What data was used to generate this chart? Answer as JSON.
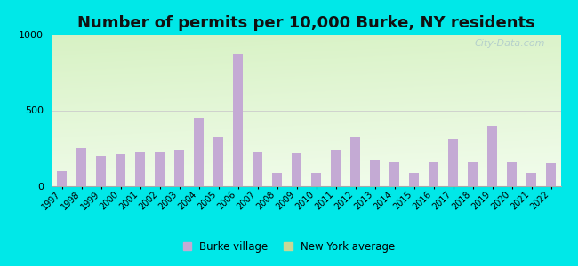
{
  "title": "Number of permits per 10,000 Burke, NY residents",
  "years": [
    1997,
    1998,
    1999,
    2000,
    2001,
    2002,
    2003,
    2004,
    2005,
    2006,
    2007,
    2008,
    2009,
    2010,
    2011,
    2012,
    2013,
    2014,
    2015,
    2016,
    2017,
    2018,
    2019,
    2020,
    2021,
    2022
  ],
  "burke_values": [
    100,
    250,
    200,
    210,
    230,
    230,
    240,
    450,
    330,
    870,
    230,
    90,
    220,
    90,
    240,
    320,
    175,
    160,
    90,
    160,
    310,
    160,
    400,
    160,
    90,
    150
  ],
  "ny_values": [
    5,
    5,
    5,
    5,
    5,
    5,
    5,
    5,
    5,
    5,
    5,
    5,
    5,
    5,
    5,
    5,
    5,
    5,
    5,
    5,
    5,
    5,
    5,
    5,
    5,
    5
  ],
  "bar_color_burke": "#c4aad4",
  "bar_color_ny": "#c8d896",
  "bg_color_topleft": "#c8e8b0",
  "bg_color_bottomright": "#f0f8e8",
  "outer_bg": "#00e8e8",
  "ylim": [
    0,
    1000
  ],
  "yticks": [
    0,
    500,
    1000
  ],
  "title_fontsize": 13,
  "legend_burke": "Burke village",
  "legend_ny": "New York average",
  "watermark": "City-Data.com"
}
